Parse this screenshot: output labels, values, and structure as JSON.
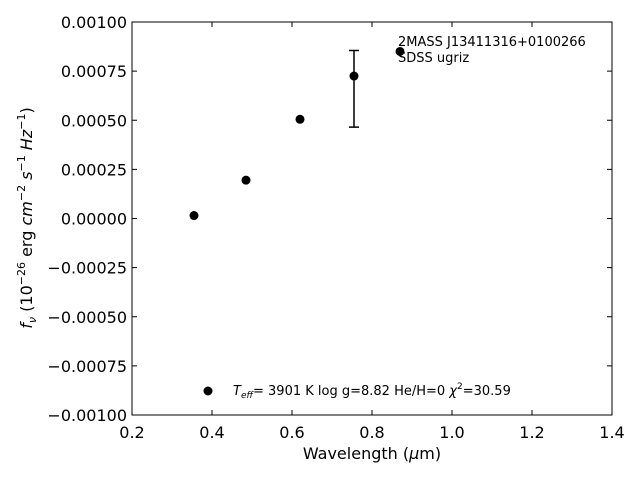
{
  "chart_data": {
    "type": "scatter",
    "xlabel_main": "Wavelength (",
    "xlabel_mu": "μ",
    "xlabel_end": "m)",
    "ylabel_f": "f",
    "ylabel_nu": "ν",
    "ylabel_p1": " (10",
    "ylabel_exp1": "−26",
    "ylabel_p2": " erg ",
    "ylabel_cm": "cm",
    "ylabel_exp2": "−2",
    "ylabel_s": " s",
    "ylabel_exp3": "−1",
    "ylabel_hz": " Hz",
    "ylabel_exp4": "−1",
    "ylabel_p3": ")",
    "xlim": [
      0.2,
      1.4
    ],
    "ylim": [
      -0.001,
      0.001
    ],
    "xticks": [
      0.2,
      0.4,
      0.6,
      0.8,
      1.0,
      1.2,
      1.4
    ],
    "xtick_labels": [
      "0.2",
      "0.4",
      "0.6",
      "0.8",
      "1.0",
      "1.2",
      "1.4"
    ],
    "yticks": [
      -0.001,
      -0.00075,
      -0.0005,
      -0.00025,
      0.0,
      0.00025,
      0.0005,
      0.00075,
      0.001
    ],
    "ytick_labels": [
      "−0.00100",
      "−0.00075",
      "−0.00050",
      "−0.00025",
      "0.00000",
      "0.00025",
      "0.00050",
      "0.00075",
      "0.00100"
    ],
    "points": [
      {
        "x": 0.355,
        "y": 1.5e-05
      },
      {
        "x": 0.485,
        "y": 0.000195
      },
      {
        "x": 0.62,
        "y": 0.000505
      },
      {
        "x": 0.755,
        "y": 0.000725,
        "yerr_low": 0.000465,
        "yerr_high": 0.000855
      },
      {
        "x": 0.87,
        "y": 0.00085
      }
    ],
    "annotations": {
      "line1": "2MASS J13411316+0100266",
      "line2": "SDSS ugriz"
    },
    "legend": {
      "placement": "bottom",
      "teff_T": "T",
      "teff_sub": "eff",
      "teff_rest": "=  3901 K  log g=8.82  He/H=0  ",
      "chi": "χ",
      "chi_sup": "2",
      "chi_rest": "=30.59"
    },
    "grid": false,
    "marker_color": "#000000"
  }
}
